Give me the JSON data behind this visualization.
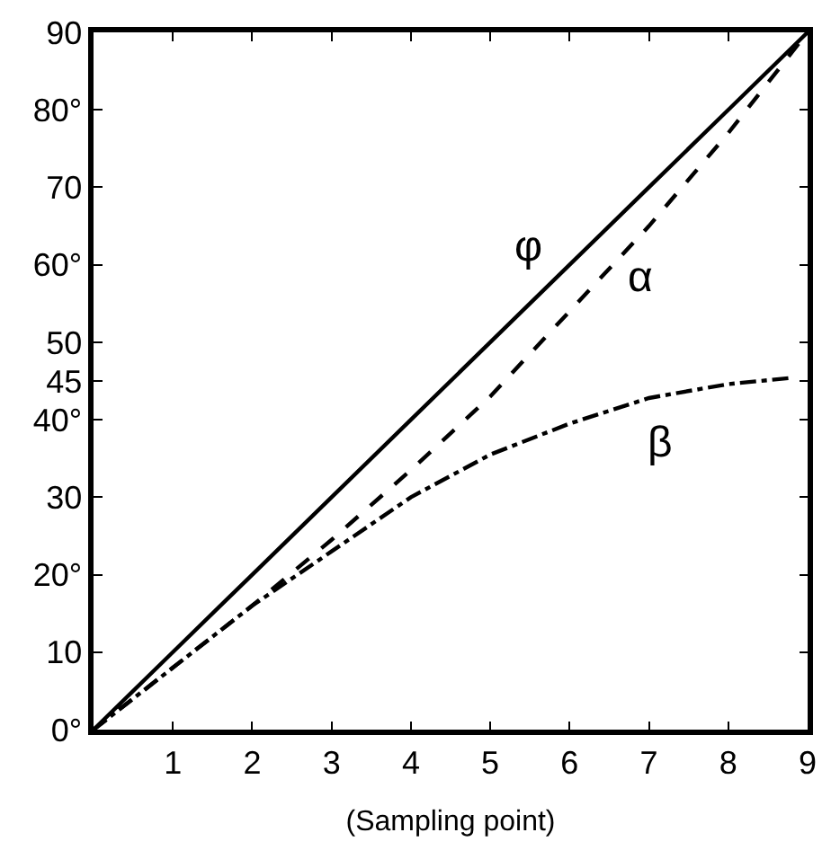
{
  "chart_data": {
    "type": "line",
    "xlabel": "(Sampling point)",
    "x": [
      0,
      1,
      2,
      3,
      4,
      5,
      6,
      7,
      8,
      9
    ],
    "series": [
      {
        "name": "φ",
        "color": "#000000",
        "line_style": "solid",
        "values": [
          0,
          10,
          20,
          30,
          40,
          50,
          60,
          70,
          80,
          90
        ]
      },
      {
        "name": "α",
        "color": "#000000",
        "line_style": "dashed",
        "values": [
          0,
          8,
          16,
          24.5,
          33.5,
          43,
          54,
          65,
          77,
          90
        ]
      },
      {
        "name": "β",
        "color": "#000000",
        "line_style": "dashdot",
        "x": [
          0,
          1,
          2,
          3,
          4,
          5,
          6,
          7,
          8,
          8.8
        ],
        "values": [
          0,
          8,
          16,
          23,
          30,
          35.5,
          39.5,
          42.8,
          44.6,
          45.4
        ]
      }
    ],
    "xlim": [
      0,
      9
    ],
    "xticks": [
      1,
      2,
      3,
      4,
      5,
      6,
      7,
      8,
      9
    ],
    "ylim": [
      0,
      90
    ],
    "yticks": [
      {
        "value": 0,
        "label": "0°"
      },
      10,
      {
        "value": 20,
        "label": "20°"
      },
      30,
      {
        "value": 40,
        "label": "40°"
      },
      45,
      50,
      {
        "value": 60,
        "label": "60°"
      },
      70,
      {
        "value": 80,
        "label": "80°"
      },
      90
    ],
    "legend": false,
    "marker": "none"
  }
}
